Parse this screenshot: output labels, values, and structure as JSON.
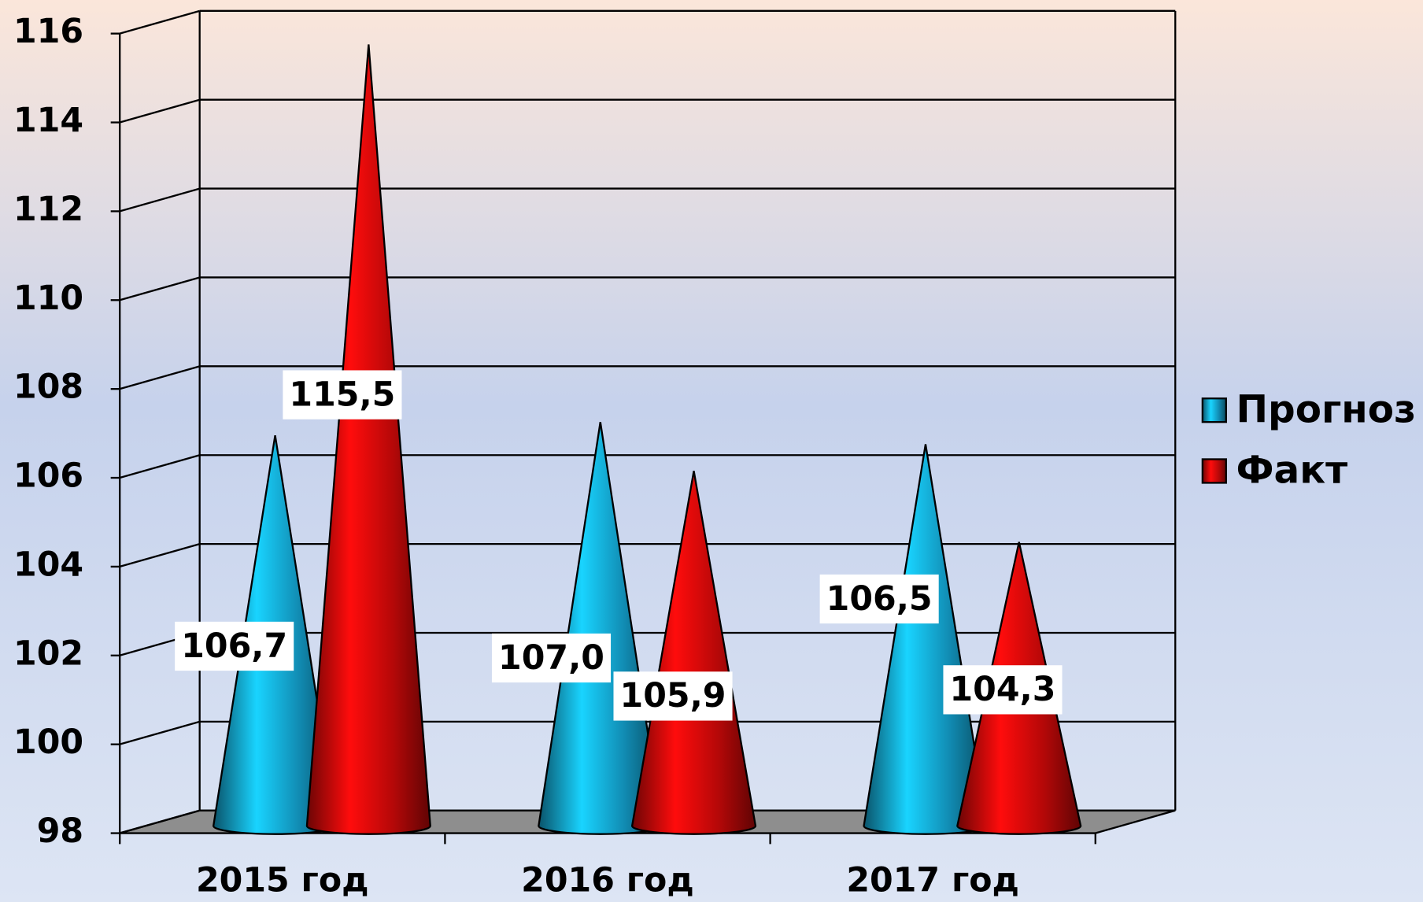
{
  "chart_data": {
    "type": "cone",
    "categories": [
      "2015 год",
      "2016 год",
      "2017 год"
    ],
    "series": [
      {
        "name": "Прогноз",
        "color": "#16b8ec",
        "values": [
          106.7,
          107.0,
          106.5
        ],
        "value_labels": [
          "106,7",
          "107,0",
          "106,5"
        ]
      },
      {
        "name": "Факт",
        "color": "#f00a0a",
        "values": [
          115.5,
          105.9,
          104.3
        ],
        "value_labels": [
          "115,5",
          "105,9",
          "104,3"
        ]
      }
    ],
    "ylim": [
      98,
      116
    ],
    "yticks": [
      98,
      100,
      102,
      104,
      106,
      108,
      110,
      112,
      114,
      116
    ],
    "grid": true,
    "legend": "right"
  }
}
